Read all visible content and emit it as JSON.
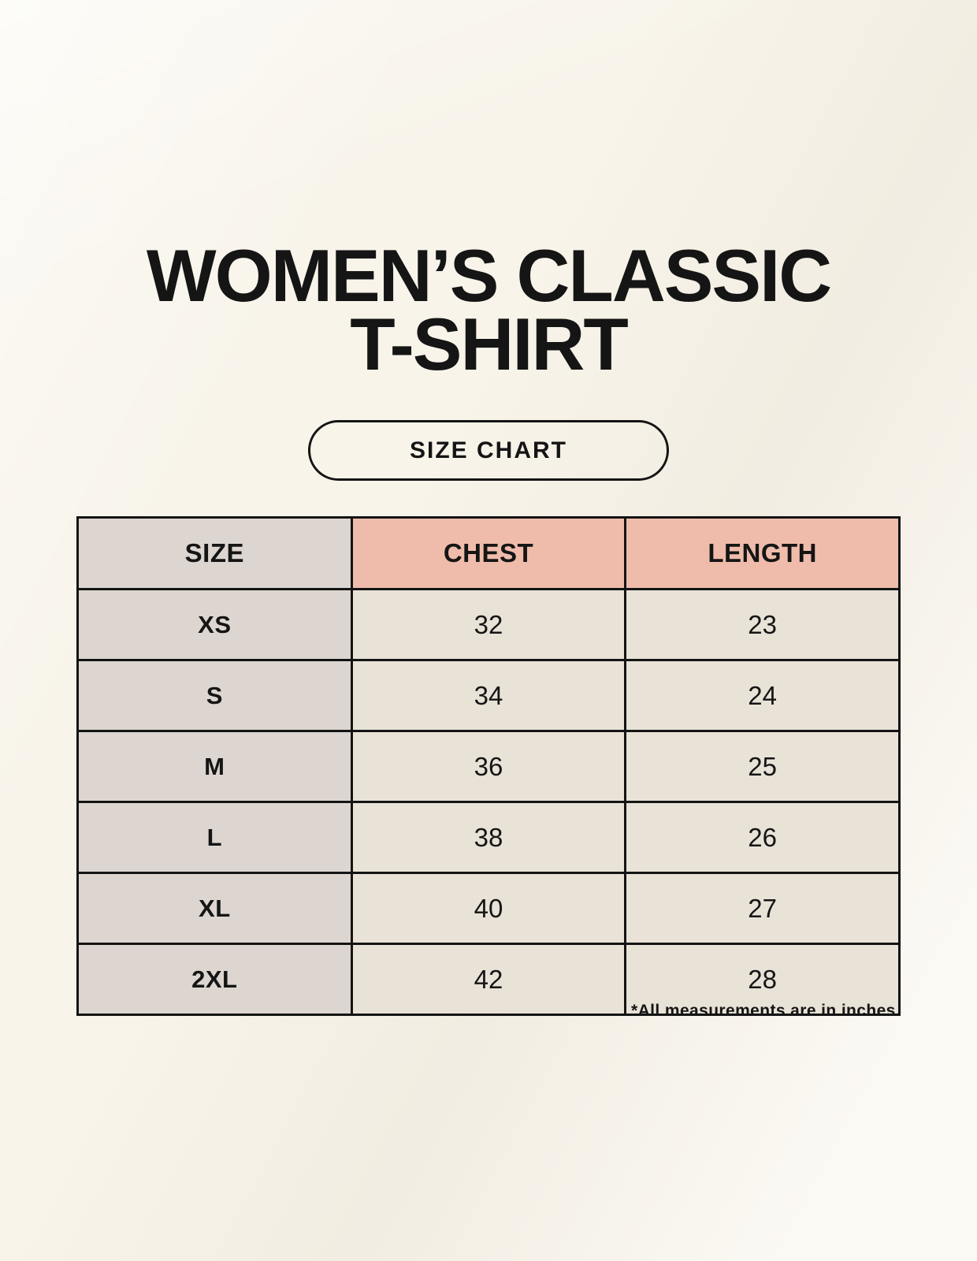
{
  "header": {
    "title_line1": "WOMEN’S CLASSIC",
    "title_line2": "T-SHIRT",
    "size_chart_label": "SIZE CHART"
  },
  "table": {
    "headers": [
      "SIZE",
      "CHEST",
      "LENGTH"
    ],
    "rows": [
      {
        "size": "XS",
        "chest": "32",
        "length": "23"
      },
      {
        "size": "S",
        "chest": "34",
        "length": "24"
      },
      {
        "size": "M",
        "chest": "36",
        "length": "25"
      },
      {
        "size": "L",
        "chest": "38",
        "length": "26"
      },
      {
        "size": "XL",
        "chest": "40",
        "length": "27"
      },
      {
        "size": "2XL",
        "chest": "42",
        "length": "28"
      }
    ],
    "footnote": "*All measurements are in inches.",
    "units": "inches"
  },
  "colors": {
    "background": "#f8f4ea",
    "cell_gray": "#ddd6d0",
    "cell_pink": "#efbcab",
    "cell_beige": "#e9e2d7",
    "table_border": "#141414",
    "text": "#151515"
  }
}
